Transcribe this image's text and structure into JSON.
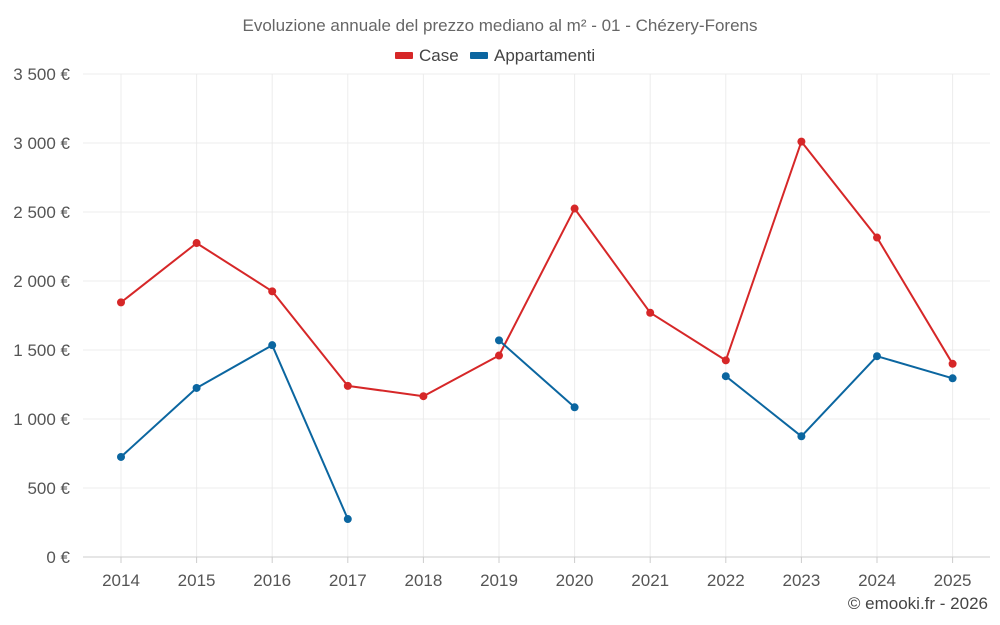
{
  "chart_data": {
    "type": "line",
    "title": "Evoluzione annuale del prezzo mediano al m² - 01 - Chézery-Forens",
    "categories": [
      "2014",
      "2015",
      "2016",
      "2017",
      "2018",
      "2019",
      "2020",
      "2021",
      "2022",
      "2023",
      "2024",
      "2025"
    ],
    "ylim": [
      0,
      3500
    ],
    "yticks": [
      0,
      500,
      1000,
      1500,
      2000,
      2500,
      3000,
      3500
    ],
    "ytick_labels": [
      "0 €",
      "500 €",
      "1 000 €",
      "1 500 €",
      "2 000 €",
      "2 500 €",
      "3 000 €",
      "3 500 €"
    ],
    "grid": true,
    "legend_position": "top-center",
    "series": [
      {
        "name": "Case",
        "color": "#d62728",
        "values": [
          1845,
          2275,
          1925,
          1240,
          1165,
          1460,
          2525,
          1770,
          1425,
          3010,
          2315,
          1400
        ]
      },
      {
        "name": "Appartamenti",
        "color": "#0b66a0",
        "values": [
          725,
          1225,
          1535,
          275,
          null,
          1570,
          1085,
          null,
          1310,
          875,
          1455,
          1295
        ]
      }
    ]
  },
  "credit": "© emooki.fr - 2026"
}
